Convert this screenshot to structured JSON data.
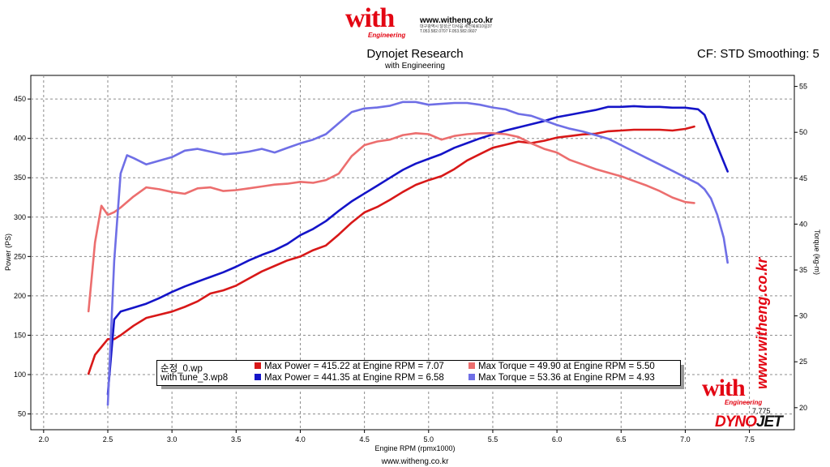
{
  "header": {
    "logo_word": "with",
    "logo_sub": "Engineering",
    "url": "www.witheng.co.kr",
    "address_line": "대구광역시 달성군 다사읍 세천북로10길37",
    "phone_line": "T.053.582.0707  F.053.582.0607",
    "cf_info": "CF: STD Smoothing: 5"
  },
  "footer": {
    "url": "www.witheng.co.kr"
  },
  "branding": {
    "logo_word": "with",
    "logo_sub": "Engineering",
    "vertical_url": "www.witheng.co.kr",
    "dynojet_a": "DYNO",
    "dynojet_b": "JET",
    "marker_label": "7.775"
  },
  "legend": {
    "runs": [
      {
        "file": "순정_0.wp",
        "power": "Max Power = 415.22 at Engine RPM = 7.07",
        "torque": "Max Torque = 49.90 at Engine RPM = 5.50",
        "power_color": "#d81818",
        "torque_color": "#ec6e6e"
      },
      {
        "file": "with tune_3.wp8",
        "power": "Max Power = 441.35 at Engine RPM = 6.58",
        "torque": "Max Torque = 53.36 at Engine RPM = 4.93",
        "power_color": "#1414c8",
        "torque_color": "#6f6fe6"
      }
    ]
  },
  "chart_data": {
    "type": "line",
    "title": "Dynojet Research",
    "subtitle": "with Engineering",
    "xlabel": "Engine RPM (rpmx1000)",
    "ylabel": "Power (PS)",
    "y2label": "Torque (kg-m)",
    "xlim": [
      1.9,
      7.85
    ],
    "ylim": [
      30,
      480
    ],
    "y2lim": [
      17.6,
      56.2
    ],
    "x_ticks": [
      "2.0",
      "2.5",
      "3.0",
      "3.5",
      "4.0",
      "4.5",
      "5.0",
      "5.5",
      "6.0",
      "6.5",
      "7.0",
      "7.5"
    ],
    "y_ticks": [
      "50",
      "100",
      "150",
      "200",
      "250",
      "300",
      "350",
      "400",
      "450"
    ],
    "y2_ticks": [
      "20",
      "25",
      "30",
      "35",
      "40",
      "45",
      "50",
      "55"
    ],
    "grid": true,
    "legend_position": "bottom-center",
    "series": [
      {
        "name": "순정_0.wp",
        "axis": "power",
        "color": "#d81818",
        "points": [
          [
            2.35,
            101
          ],
          [
            2.4,
            125
          ],
          [
            2.45,
            135
          ],
          [
            2.5,
            145
          ],
          [
            2.55,
            145
          ],
          [
            2.6,
            150
          ],
          [
            2.7,
            162
          ],
          [
            2.8,
            172
          ],
          [
            2.9,
            176
          ],
          [
            3.0,
            180
          ],
          [
            3.1,
            186
          ],
          [
            3.2,
            193
          ],
          [
            3.3,
            203
          ],
          [
            3.4,
            207
          ],
          [
            3.5,
            213
          ],
          [
            3.6,
            222
          ],
          [
            3.7,
            231
          ],
          [
            3.8,
            238
          ],
          [
            3.9,
            245
          ],
          [
            4.0,
            250
          ],
          [
            4.1,
            258
          ],
          [
            4.2,
            264
          ],
          [
            4.3,
            278
          ],
          [
            4.4,
            293
          ],
          [
            4.5,
            306
          ],
          [
            4.6,
            313
          ],
          [
            4.7,
            322
          ],
          [
            4.8,
            332
          ],
          [
            4.9,
            341
          ],
          [
            5.0,
            347
          ],
          [
            5.1,
            352
          ],
          [
            5.2,
            361
          ],
          [
            5.3,
            372
          ],
          [
            5.4,
            380
          ],
          [
            5.5,
            388
          ],
          [
            5.6,
            392
          ],
          [
            5.7,
            396
          ],
          [
            5.8,
            394
          ],
          [
            5.9,
            397
          ],
          [
            6.0,
            401
          ],
          [
            6.1,
            403
          ],
          [
            6.2,
            405
          ],
          [
            6.3,
            406
          ],
          [
            6.4,
            409
          ],
          [
            6.5,
            410
          ],
          [
            6.6,
            411
          ],
          [
            6.7,
            411
          ],
          [
            6.8,
            411
          ],
          [
            6.9,
            410
          ],
          [
            7.0,
            412
          ],
          [
            7.07,
            415
          ]
        ]
      },
      {
        "name": "with tune_3.wp8",
        "axis": "power",
        "color": "#1414c8",
        "points": [
          [
            2.5,
            75
          ],
          [
            2.55,
            170
          ],
          [
            2.6,
            180
          ],
          [
            2.7,
            185
          ],
          [
            2.8,
            190
          ],
          [
            2.9,
            197
          ],
          [
            3.0,
            205
          ],
          [
            3.1,
            212
          ],
          [
            3.2,
            218
          ],
          [
            3.3,
            224
          ],
          [
            3.4,
            230
          ],
          [
            3.5,
            237
          ],
          [
            3.6,
            245
          ],
          [
            3.7,
            252
          ],
          [
            3.8,
            258
          ],
          [
            3.9,
            266
          ],
          [
            4.0,
            277
          ],
          [
            4.1,
            285
          ],
          [
            4.2,
            295
          ],
          [
            4.3,
            308
          ],
          [
            4.4,
            320
          ],
          [
            4.5,
            330
          ],
          [
            4.6,
            340
          ],
          [
            4.7,
            350
          ],
          [
            4.8,
            360
          ],
          [
            4.9,
            368
          ],
          [
            5.0,
            374
          ],
          [
            5.1,
            380
          ],
          [
            5.2,
            388
          ],
          [
            5.3,
            394
          ],
          [
            5.4,
            400
          ],
          [
            5.5,
            405
          ],
          [
            5.6,
            410
          ],
          [
            5.7,
            414
          ],
          [
            5.8,
            418
          ],
          [
            5.9,
            422
          ],
          [
            6.0,
            427
          ],
          [
            6.1,
            430
          ],
          [
            6.2,
            433
          ],
          [
            6.3,
            436
          ],
          [
            6.4,
            440
          ],
          [
            6.5,
            440
          ],
          [
            6.6,
            441
          ],
          [
            6.7,
            440
          ],
          [
            6.8,
            440
          ],
          [
            6.9,
            439
          ],
          [
            7.0,
            439
          ],
          [
            7.1,
            437
          ],
          [
            7.15,
            430
          ],
          [
            7.2,
            410
          ],
          [
            7.25,
            390
          ],
          [
            7.3,
            370
          ],
          [
            7.33,
            358
          ]
        ]
      },
      {
        "name": "순정_0.wp",
        "axis": "torque",
        "color": "#ec6e6e",
        "points": [
          [
            2.35,
            30.5
          ],
          [
            2.4,
            38.0
          ],
          [
            2.45,
            42.0
          ],
          [
            2.5,
            41.0
          ],
          [
            2.55,
            41.3
          ],
          [
            2.6,
            41.8
          ],
          [
            2.7,
            43.0
          ],
          [
            2.8,
            44.0
          ],
          [
            2.9,
            43.8
          ],
          [
            3.0,
            43.5
          ],
          [
            3.1,
            43.3
          ],
          [
            3.2,
            43.9
          ],
          [
            3.3,
            44.0
          ],
          [
            3.4,
            43.6
          ],
          [
            3.5,
            43.7
          ],
          [
            3.6,
            43.9
          ],
          [
            3.7,
            44.1
          ],
          [
            3.8,
            44.3
          ],
          [
            3.9,
            44.4
          ],
          [
            4.0,
            44.6
          ],
          [
            4.1,
            44.5
          ],
          [
            4.2,
            44.8
          ],
          [
            4.3,
            45.5
          ],
          [
            4.4,
            47.4
          ],
          [
            4.5,
            48.6
          ],
          [
            4.6,
            49.0
          ],
          [
            4.7,
            49.2
          ],
          [
            4.8,
            49.7
          ],
          [
            4.9,
            49.9
          ],
          [
            5.0,
            49.8
          ],
          [
            5.1,
            49.2
          ],
          [
            5.2,
            49.6
          ],
          [
            5.3,
            49.8
          ],
          [
            5.4,
            49.9
          ],
          [
            5.5,
            49.9
          ],
          [
            5.6,
            49.8
          ],
          [
            5.7,
            49.5
          ],
          [
            5.8,
            48.8
          ],
          [
            5.9,
            48.2
          ],
          [
            6.0,
            47.8
          ],
          [
            6.1,
            47.0
          ],
          [
            6.2,
            46.5
          ],
          [
            6.3,
            46.0
          ],
          [
            6.4,
            45.6
          ],
          [
            6.5,
            45.2
          ],
          [
            6.6,
            44.7
          ],
          [
            6.7,
            44.2
          ],
          [
            6.8,
            43.6
          ],
          [
            6.9,
            42.9
          ],
          [
            7.0,
            42.4
          ],
          [
            7.07,
            42.3
          ]
        ]
      },
      {
        "name": "with tune_3.wp8",
        "axis": "torque",
        "color": "#6f6fe6",
        "points": [
          [
            2.5,
            20.3
          ],
          [
            2.55,
            36.0
          ],
          [
            2.6,
            45.5
          ],
          [
            2.65,
            47.5
          ],
          [
            2.7,
            47.2
          ],
          [
            2.8,
            46.5
          ],
          [
            2.9,
            46.9
          ],
          [
            3.0,
            47.3
          ],
          [
            3.1,
            48.0
          ],
          [
            3.2,
            48.2
          ],
          [
            3.3,
            47.9
          ],
          [
            3.4,
            47.6
          ],
          [
            3.5,
            47.7
          ],
          [
            3.6,
            47.9
          ],
          [
            3.7,
            48.2
          ],
          [
            3.8,
            47.8
          ],
          [
            3.9,
            48.3
          ],
          [
            4.0,
            48.8
          ],
          [
            4.1,
            49.2
          ],
          [
            4.2,
            49.8
          ],
          [
            4.3,
            51.0
          ],
          [
            4.4,
            52.2
          ],
          [
            4.5,
            52.6
          ],
          [
            4.6,
            52.7
          ],
          [
            4.7,
            52.9
          ],
          [
            4.8,
            53.3
          ],
          [
            4.9,
            53.3
          ],
          [
            5.0,
            53.0
          ],
          [
            5.1,
            53.1
          ],
          [
            5.2,
            53.2
          ],
          [
            5.3,
            53.2
          ],
          [
            5.4,
            53.0
          ],
          [
            5.5,
            52.7
          ],
          [
            5.6,
            52.5
          ],
          [
            5.7,
            52.0
          ],
          [
            5.8,
            51.8
          ],
          [
            5.9,
            51.3
          ],
          [
            6.0,
            50.8
          ],
          [
            6.1,
            50.4
          ],
          [
            6.2,
            50.1
          ],
          [
            6.3,
            49.7
          ],
          [
            6.4,
            49.3
          ],
          [
            6.5,
            48.6
          ],
          [
            6.6,
            47.9
          ],
          [
            6.7,
            47.2
          ],
          [
            6.8,
            46.5
          ],
          [
            6.9,
            45.8
          ],
          [
            7.0,
            45.1
          ],
          [
            7.1,
            44.4
          ],
          [
            7.15,
            43.8
          ],
          [
            7.2,
            42.8
          ],
          [
            7.25,
            41.0
          ],
          [
            7.3,
            38.5
          ],
          [
            7.33,
            35.8
          ]
        ]
      }
    ]
  }
}
